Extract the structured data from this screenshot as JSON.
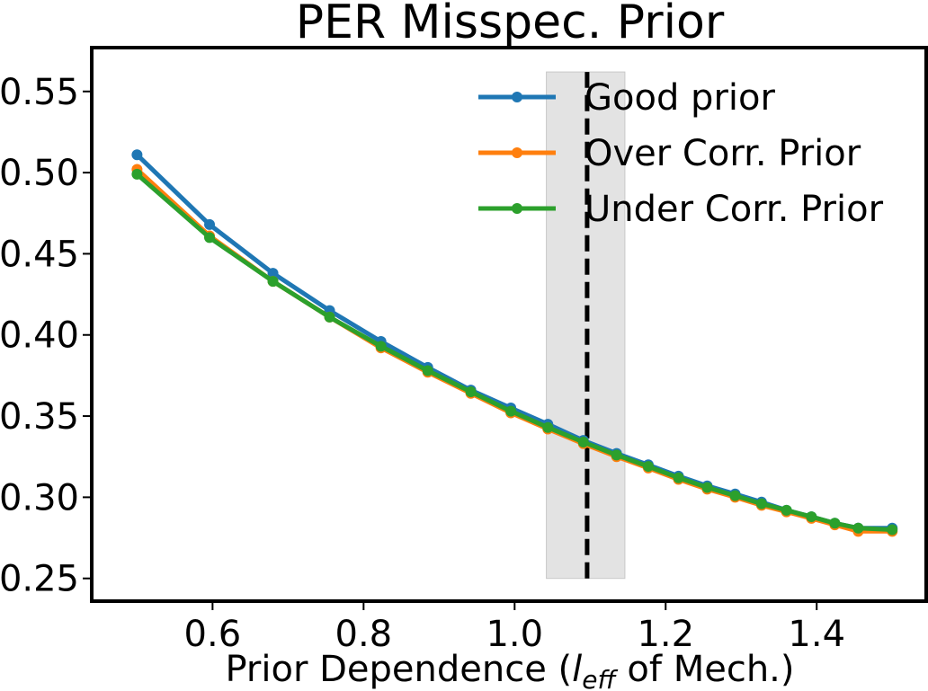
{
  "chart_data": {
    "type": "line",
    "title": "PER Misspec. Prior",
    "xlabel_parts": {
      "prefix": "Prior Dependence (",
      "symbol": "l",
      "subscript": "eff",
      "suffix": " of Mech.)"
    },
    "ylabel": "",
    "xlim": [
      0.44,
      1.545
    ],
    "ylim": [
      0.236,
      0.577
    ],
    "xticks": [
      0.6,
      0.8,
      1.0,
      1.2,
      1.4
    ],
    "xtick_labels": [
      "0.6",
      "0.8",
      "1.0",
      "1.2",
      "1.4"
    ],
    "yticks": [
      0.25,
      0.3,
      0.35,
      0.4,
      0.45,
      0.5,
      0.55
    ],
    "ytick_labels": [
      "0.25",
      "0.30",
      "0.35",
      "0.40",
      "0.45",
      "0.50",
      "0.55"
    ],
    "shaded_region": {
      "x": [
        1.042,
        1.146
      ],
      "y": [
        0.25,
        0.562
      ],
      "color": "#e3e3e3"
    },
    "vertical_line": {
      "x": 1.096,
      "y": [
        0.25,
        0.562
      ],
      "style": "dashed",
      "color": "#000000"
    },
    "legend_location": "top-right",
    "x": [
      0.5,
      0.596,
      0.68,
      0.755,
      0.823,
      0.885,
      0.942,
      0.995,
      1.044,
      1.091,
      1.135,
      1.177,
      1.217,
      1.255,
      1.292,
      1.327,
      1.36,
      1.393,
      1.424,
      1.455,
      1.5
    ],
    "series": [
      {
        "name": "Good prior",
        "color": "#1f77b4",
        "values": [
          0.511,
          0.468,
          0.438,
          0.415,
          0.396,
          0.38,
          0.366,
          0.355,
          0.345,
          0.335,
          0.327,
          0.32,
          0.313,
          0.307,
          0.302,
          0.297,
          0.292,
          0.288,
          0.284,
          0.281,
          0.281
        ]
      },
      {
        "name": "Over Corr. Prior",
        "color": "#ff7f0e",
        "values": [
          0.502,
          0.461,
          0.433,
          0.411,
          0.392,
          0.377,
          0.364,
          0.352,
          0.342,
          0.333,
          0.325,
          0.318,
          0.311,
          0.305,
          0.3,
          0.295,
          0.291,
          0.287,
          0.283,
          0.279,
          0.279
        ]
      },
      {
        "name": "Under Corr. Prior",
        "color": "#2ca02c",
        "values": [
          0.499,
          0.46,
          0.433,
          0.411,
          0.393,
          0.378,
          0.365,
          0.353,
          0.343,
          0.334,
          0.326,
          0.319,
          0.312,
          0.306,
          0.301,
          0.296,
          0.292,
          0.288,
          0.284,
          0.281,
          0.28
        ]
      }
    ]
  }
}
